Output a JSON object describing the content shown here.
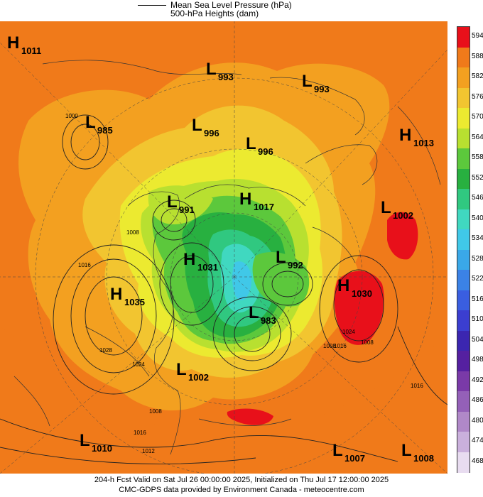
{
  "legend": {
    "line1": "Mean Sea Level Pressure (hPa)",
    "line2": "500-hPa Heights (dam)"
  },
  "colorbar": {
    "labels": [
      "594",
      "588",
      "582",
      "576",
      "570",
      "564",
      "558",
      "552",
      "546",
      "540",
      "534",
      "528",
      "522",
      "516",
      "510",
      "504",
      "498",
      "492",
      "486",
      "480",
      "474",
      "468"
    ],
    "colors": [
      "#e8101a",
      "#f07a1a",
      "#f3a020",
      "#f2c530",
      "#ecea30",
      "#b8e030",
      "#5cc83c",
      "#28b040",
      "#30c880",
      "#40d8c0",
      "#40c8e8",
      "#3aa8e8",
      "#3b82e6",
      "#3a5ee0",
      "#3b3ed0",
      "#3b26b0",
      "#5520a0",
      "#7a3aa8",
      "#9460b8",
      "#b088c8",
      "#cab0dc",
      "#e8dcf0"
    ]
  },
  "pressure_centers": [
    {
      "type": "H",
      "value": "1011"
    },
    {
      "type": "L",
      "value": "985"
    },
    {
      "type": "L",
      "value": "993"
    },
    {
      "type": "L",
      "value": "993"
    },
    {
      "type": "L",
      "value": "996"
    },
    {
      "type": "L",
      "value": "996"
    },
    {
      "type": "H",
      "value": "1013"
    },
    {
      "type": "L",
      "value": "991"
    },
    {
      "type": "H",
      "value": "1017"
    },
    {
      "type": "L",
      "value": "1002"
    },
    {
      "type": "H",
      "value": "1031"
    },
    {
      "type": "L",
      "value": "992"
    },
    {
      "type": "H",
      "value": "1035"
    },
    {
      "type": "H",
      "value": "1030"
    },
    {
      "type": "L",
      "value": "983"
    },
    {
      "type": "L",
      "value": "1002"
    },
    {
      "type": "L",
      "value": "1010"
    },
    {
      "type": "L",
      "value": "1007"
    },
    {
      "type": "L",
      "value": "1008"
    }
  ],
  "isobar_labels": [
    "1000",
    "1008",
    "1016",
    "1028",
    "1024",
    "1016",
    "1008",
    "1024",
    "1016",
    "1008",
    "1012",
    "1016",
    "1008"
  ],
  "footer": {
    "line1": "204-h Fcst Valid on Sat Jul 26 00:00:00 2025, Initialized on Thu Jul 17 12:00:00 2025",
    "line2": "CMC-GDPS data provided by Environment Canada - meteocentre.com"
  }
}
